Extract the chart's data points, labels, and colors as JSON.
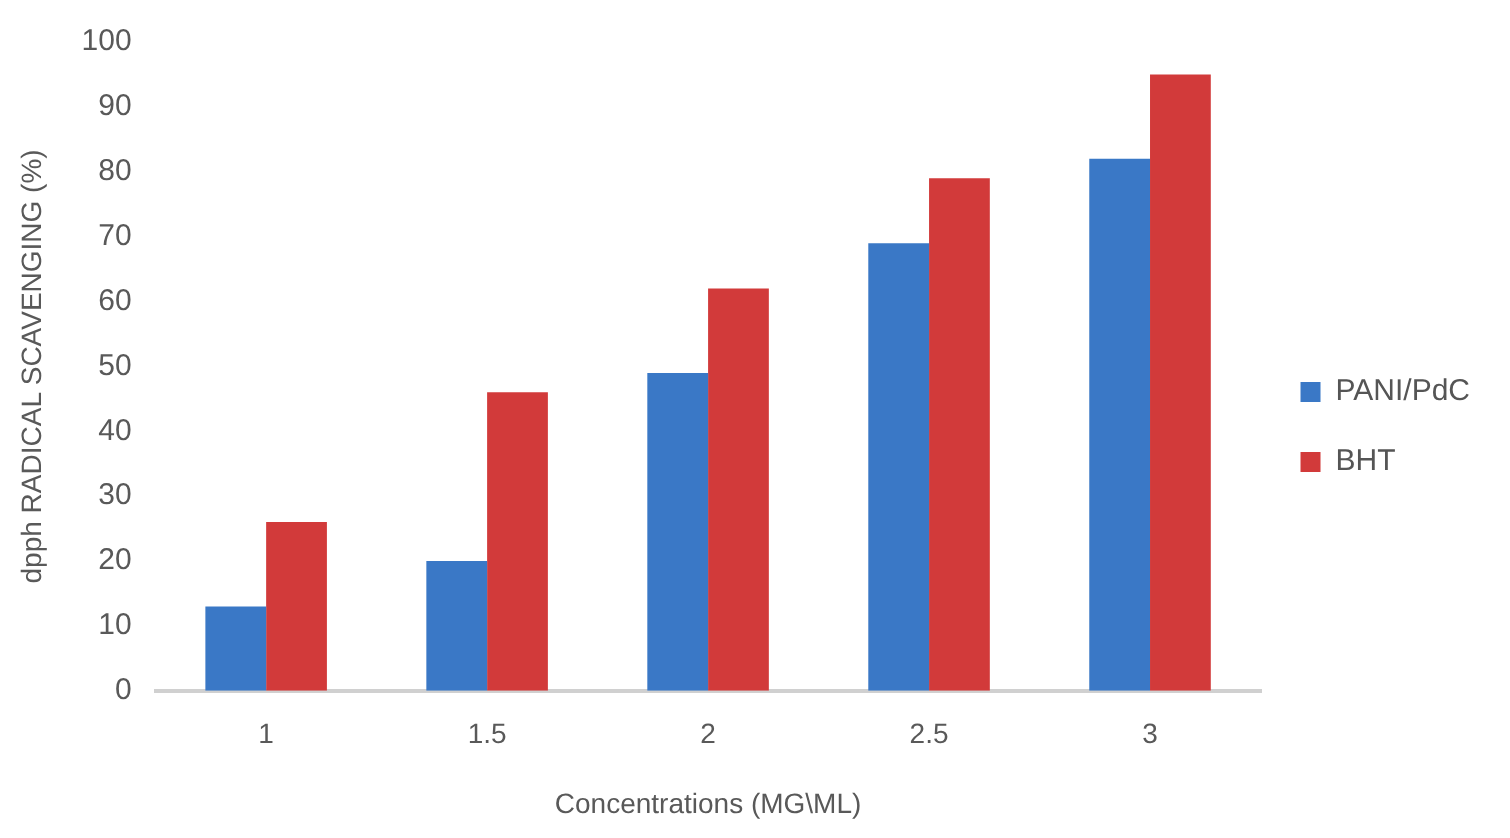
{
  "chart_data": {
    "type": "bar",
    "xlabel": "Concentrations (MG\\ML)",
    "ylabel": "dpph RADICAL SCAVENGING (%)",
    "categories": [
      "1",
      "1.5",
      "2",
      "2.5",
      "3"
    ],
    "series": [
      {
        "name": "PANI/PdC",
        "color": "#3a78c6",
        "values": [
          13,
          20,
          49,
          69,
          82
        ]
      },
      {
        "name": "BHT",
        "color": "#d23a3a",
        "values": [
          26,
          46,
          62,
          79,
          95
        ]
      }
    ],
    "ylim": [
      0,
      100
    ],
    "yticks": [
      0,
      10,
      20,
      30,
      40,
      50,
      60,
      70,
      80,
      90,
      100
    ],
    "grid": false,
    "legend": "right"
  }
}
